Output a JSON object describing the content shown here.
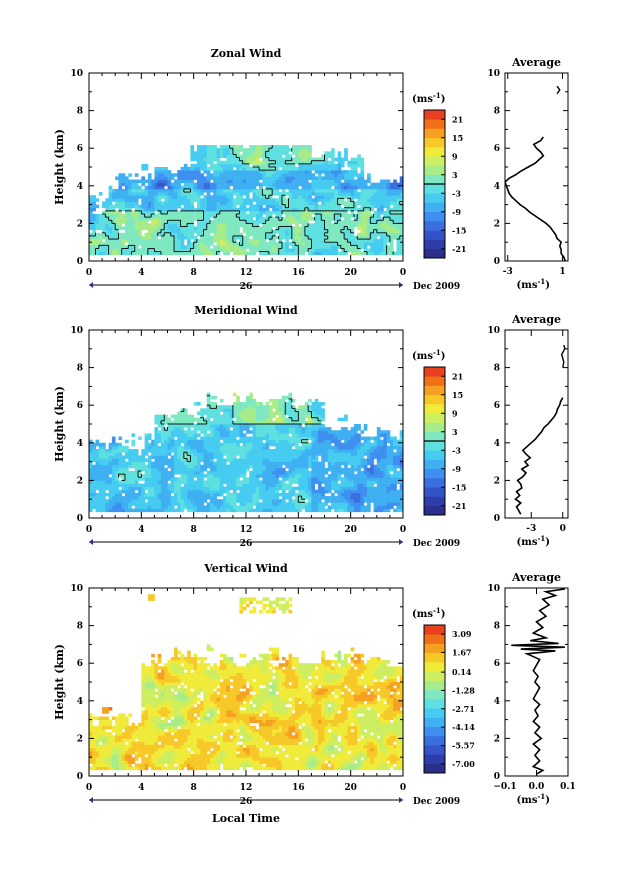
{
  "chart_data": [
    {
      "type": "heatmap",
      "title": "Zonal Wind",
      "ylabel": "Height (km)",
      "xlabel": "",
      "xlim": [
        0,
        24
      ],
      "ylim": [
        0,
        10
      ],
      "x_ticks": [
        "0",
        "4",
        "8",
        "12",
        "16",
        "20",
        "0"
      ],
      "y_ticks": [
        "0",
        "2",
        "4",
        "6",
        "8",
        "10"
      ],
      "date_day": "26",
      "date_label": "Dec 2009",
      "colorbar": {
        "unit_base": "(ms",
        "unit_exp": "-1",
        "unit_close": ")",
        "labels": [
          "21",
          "15",
          "9",
          "3",
          "-3",
          "-9",
          "-15",
          "-21"
        ],
        "min": -24,
        "max": 24,
        "contour_value": 0
      },
      "average": {
        "title": "Average",
        "xlabel_base": "(ms",
        "xlabel_exp": "-1",
        "xlabel_close": ")",
        "xlim": [
          -3.2,
          1.4
        ],
        "x_tick_values": [
          -3,
          1
        ],
        "x_ticks": [
          "-3",
          "1"
        ],
        "y_ticks": [
          "0",
          "2",
          "4",
          "6",
          "8",
          "10"
        ],
        "profile": [
          [
            1.2,
            0.0
          ],
          [
            1.1,
            0.2
          ],
          [
            0.9,
            0.4
          ],
          [
            0.9,
            0.6
          ],
          [
            0.8,
            0.8
          ],
          [
            0.9,
            1.0
          ],
          [
            0.6,
            1.2
          ],
          [
            0.5,
            1.4
          ],
          [
            0.3,
            1.6
          ],
          [
            0.1,
            1.8
          ],
          [
            -0.2,
            2.0
          ],
          [
            -0.6,
            2.2
          ],
          [
            -1.0,
            2.4
          ],
          [
            -1.4,
            2.6
          ],
          [
            -1.7,
            2.8
          ],
          [
            -2.1,
            3.0
          ],
          [
            -2.4,
            3.2
          ],
          [
            -2.7,
            3.4
          ],
          [
            -2.9,
            3.6
          ],
          [
            -3.0,
            3.8
          ],
          [
            -3.1,
            4.0
          ],
          [
            -3.2,
            4.2
          ],
          [
            -2.9,
            4.4
          ],
          [
            -2.4,
            4.6
          ],
          [
            -2.0,
            4.8
          ],
          [
            -1.5,
            5.0
          ],
          [
            -1.0,
            5.2
          ],
          [
            -0.7,
            5.4
          ],
          [
            -0.4,
            5.6
          ],
          [
            -0.6,
            5.8
          ],
          [
            -0.9,
            6.0
          ],
          [
            -1.1,
            6.2
          ],
          [
            -0.6,
            6.4
          ],
          [
            -0.4,
            6.6
          ]
        ],
        "fragment": [
          [
            0.6,
            9.3
          ],
          [
            0.8,
            9.1
          ],
          [
            0.6,
            8.9
          ]
        ]
      }
    },
    {
      "type": "heatmap",
      "title": "Meridional Wind",
      "ylabel": "Height (km)",
      "xlabel": "",
      "xlim": [
        0,
        24
      ],
      "ylim": [
        0,
        10
      ],
      "x_ticks": [
        "0",
        "4",
        "8",
        "12",
        "16",
        "20",
        "0"
      ],
      "y_ticks": [
        "0",
        "2",
        "4",
        "6",
        "8",
        "10"
      ],
      "date_day": "26",
      "date_label": "Dec 2009",
      "colorbar": {
        "unit_base": "(ms",
        "unit_exp": "-1",
        "unit_close": ")",
        "labels": [
          "21",
          "15",
          "9",
          "3",
          "-3",
          "-9",
          "-15",
          "-21"
        ],
        "min": -24,
        "max": 24,
        "contour_value": 0
      },
      "average": {
        "title": "Average",
        "xlabel_base": "(ms",
        "xlabel_exp": "-1",
        "xlabel_close": ")",
        "xlim": [
          -5.5,
          0.5
        ],
        "x_tick_values": [
          -3,
          0
        ],
        "x_ticks": [
          "-3",
          "0"
        ],
        "y_ticks": [
          "0",
          "2",
          "4",
          "6",
          "8",
          "10"
        ],
        "profile": [
          [
            -4.0,
            0.2
          ],
          [
            -4.2,
            0.4
          ],
          [
            -4.4,
            0.6
          ],
          [
            -4.0,
            0.8
          ],
          [
            -4.5,
            1.0
          ],
          [
            -4.1,
            1.2
          ],
          [
            -4.4,
            1.4
          ],
          [
            -3.9,
            1.6
          ],
          [
            -4.0,
            1.8
          ],
          [
            -4.3,
            2.0
          ],
          [
            -3.8,
            2.2
          ],
          [
            -3.5,
            2.4
          ],
          [
            -3.9,
            2.6
          ],
          [
            -3.3,
            2.8
          ],
          [
            -3.6,
            3.0
          ],
          [
            -3.1,
            3.2
          ],
          [
            -3.5,
            3.4
          ],
          [
            -3.8,
            3.6
          ],
          [
            -3.4,
            3.8
          ],
          [
            -3.0,
            4.0
          ],
          [
            -2.6,
            4.2
          ],
          [
            -2.3,
            4.4
          ],
          [
            -2.0,
            4.6
          ],
          [
            -1.8,
            4.8
          ],
          [
            -1.4,
            5.0
          ],
          [
            -1.1,
            5.2
          ],
          [
            -0.8,
            5.4
          ],
          [
            -0.6,
            5.6
          ],
          [
            -0.5,
            5.8
          ],
          [
            -0.3,
            6.0
          ],
          [
            -0.2,
            6.2
          ],
          [
            0.0,
            6.4
          ]
        ],
        "fragment": [
          [
            0.0,
            8.0
          ],
          [
            0.1,
            8.3
          ],
          [
            -0.1,
            8.7
          ],
          [
            0.2,
            9.0
          ],
          [
            0.1,
            9.2
          ]
        ]
      }
    },
    {
      "type": "heatmap",
      "title": "Vertical Wind",
      "ylabel": "Height (km)",
      "xlabel": "Local Time",
      "xlim": [
        0,
        24
      ],
      "ylim": [
        0,
        10
      ],
      "x_ticks": [
        "0",
        "4",
        "8",
        "12",
        "16",
        "20",
        "0"
      ],
      "y_ticks": [
        "0",
        "2",
        "4",
        "6",
        "8",
        "10"
      ],
      "date_day": "26",
      "date_label": "Dec 2009",
      "colorbar": {
        "unit_base": "(ms",
        "unit_exp": "-1",
        "unit_close": ")",
        "labels": [
          "3.09",
          "1.67",
          "0.14",
          "-1.28",
          "-2.71",
          "-4.14",
          "-5.57",
          "-7.00"
        ],
        "min": -7.7,
        "max": 3.8
      },
      "average": {
        "title": "Average",
        "xlabel_base": "(ms",
        "xlabel_exp": "-1",
        "xlabel_close": ")",
        "xlim": [
          -0.1,
          0.1
        ],
        "x_tick_values": [
          -0.1,
          0.0,
          0.1
        ],
        "x_ticks": [
          "−0.1",
          "0.0",
          "0.1"
        ],
        "y_ticks": [
          "0",
          "2",
          "4",
          "6",
          "8",
          "10"
        ],
        "profile": [
          [
            0.0,
            0.1
          ],
          [
            0.02,
            0.3
          ],
          [
            -0.01,
            0.5
          ],
          [
            0.01,
            0.8
          ],
          [
            -0.005,
            1.1
          ],
          [
            0.01,
            1.4
          ],
          [
            -0.01,
            1.7
          ],
          [
            0.015,
            2.0
          ],
          [
            -0.005,
            2.3
          ],
          [
            0.01,
            2.6
          ],
          [
            -0.01,
            2.9
          ],
          [
            0.005,
            3.2
          ],
          [
            -0.005,
            3.5
          ],
          [
            0.01,
            3.8
          ],
          [
            -0.01,
            4.1
          ],
          [
            0.0,
            4.4
          ],
          [
            0.01,
            4.7
          ],
          [
            -0.005,
            5.0
          ],
          [
            0.005,
            5.3
          ],
          [
            -0.01,
            5.6
          ],
          [
            0.0,
            5.9
          ],
          [
            0.01,
            6.2
          ],
          [
            -0.03,
            6.5
          ],
          [
            0.06,
            6.65
          ],
          [
            -0.05,
            6.75
          ],
          [
            0.09,
            6.85
          ],
          [
            -0.08,
            6.95
          ],
          [
            0.07,
            7.05
          ],
          [
            -0.02,
            7.2
          ],
          [
            0.03,
            7.35
          ],
          [
            -0.01,
            7.6
          ],
          [
            0.02,
            7.9
          ],
          [
            0.0,
            8.2
          ],
          [
            0.03,
            8.5
          ],
          [
            0.01,
            8.8
          ],
          [
            0.04,
            9.1
          ],
          [
            0.02,
            9.4
          ],
          [
            0.06,
            9.6
          ],
          [
            0.03,
            9.8
          ],
          [
            0.09,
            9.95
          ]
        ],
        "fragment": []
      }
    }
  ]
}
